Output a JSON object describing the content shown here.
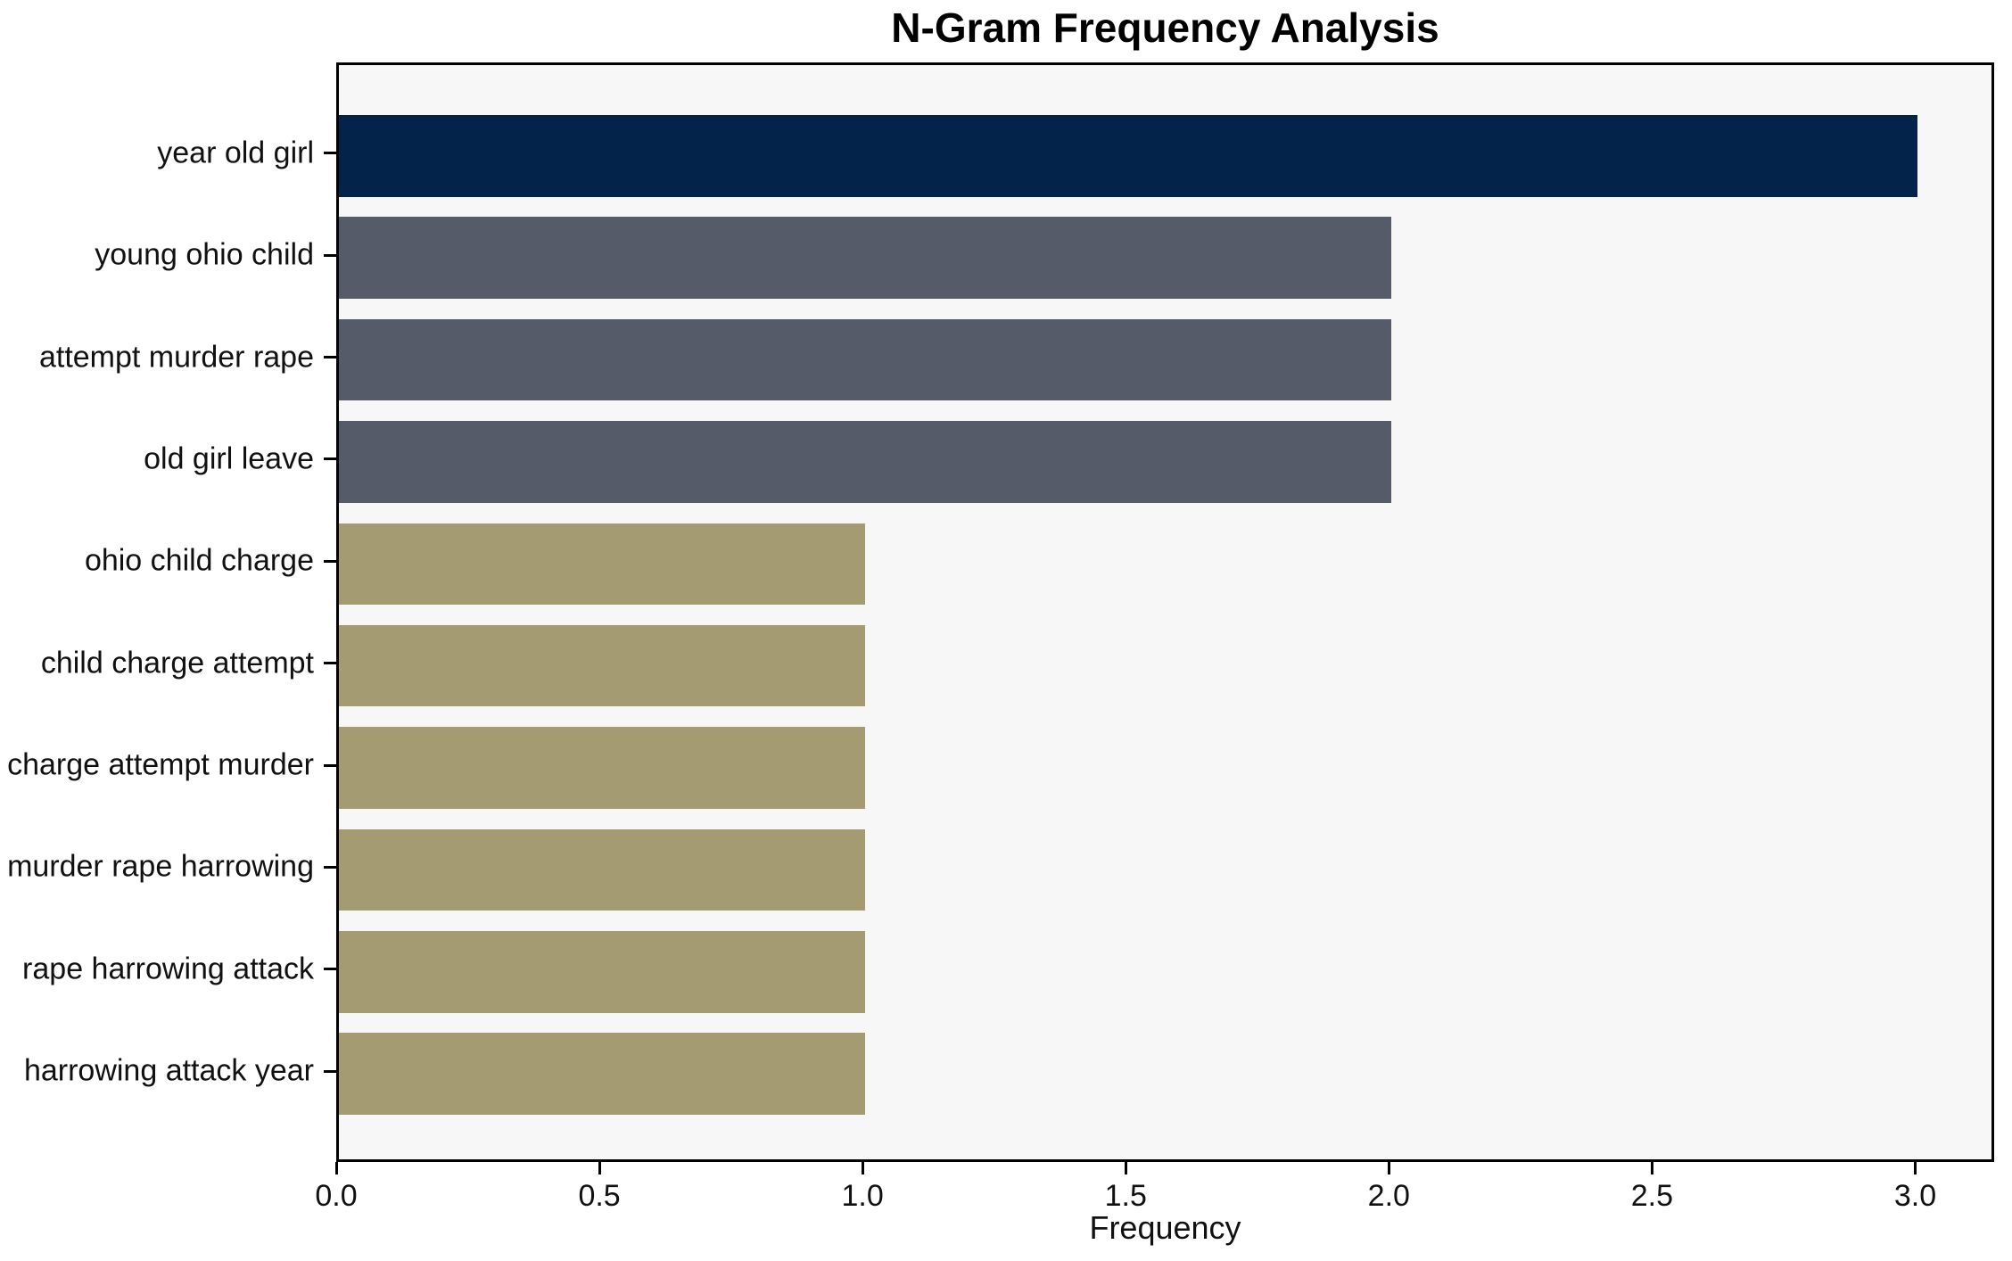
{
  "chart_data": {
    "type": "bar",
    "orientation": "horizontal",
    "title": "N-Gram Frequency Analysis",
    "xlabel": "Frequency",
    "ylabel": "",
    "categories": [
      "year old girl",
      "young ohio child",
      "attempt murder rape",
      "old girl leave",
      "ohio child charge",
      "child charge attempt",
      "charge attempt murder",
      "murder rape harrowing",
      "rape harrowing attack",
      "harrowing attack year"
    ],
    "values": [
      3,
      2,
      2,
      2,
      1,
      1,
      1,
      1,
      1,
      1
    ],
    "bar_colors": [
      "#04234a",
      "#565b6a",
      "#565b6a",
      "#565b6a",
      "#a49b72",
      "#a49b72",
      "#a49b72",
      "#a49b72",
      "#a49b72",
      "#a49b72"
    ],
    "x_ticks": [
      0.0,
      0.5,
      1.0,
      1.5,
      2.0,
      2.5,
      3.0
    ],
    "x_tick_labels": [
      "0.0",
      "0.5",
      "1.0",
      "1.5",
      "2.0",
      "2.5",
      "3.0"
    ],
    "xlim": [
      0,
      3.15
    ],
    "grid": false,
    "legend_position": "none",
    "plot_background": "#f7f7f8",
    "figure_background": "#ffffff",
    "spine_color": "#000000"
  }
}
